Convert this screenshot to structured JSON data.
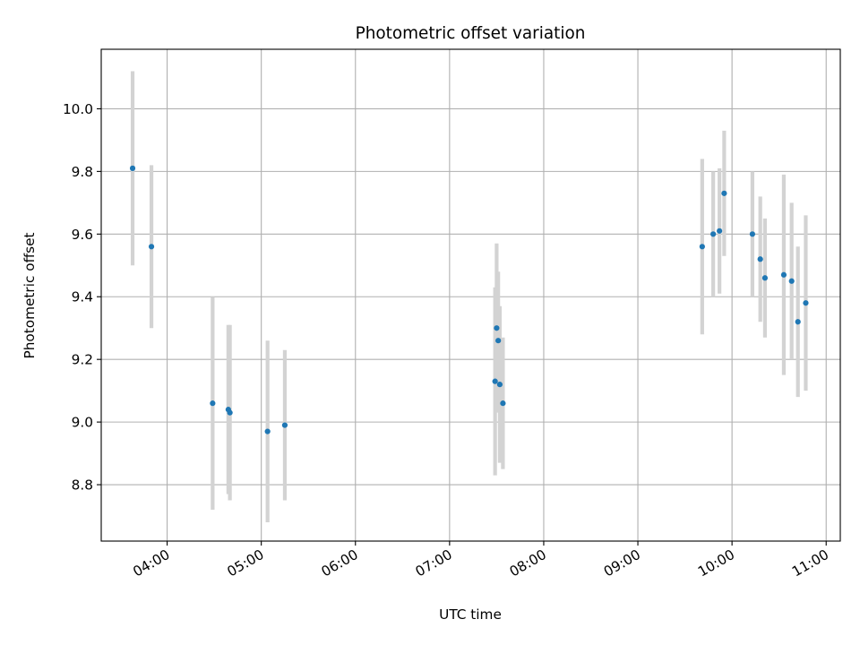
{
  "chart_data": {
    "type": "scatter",
    "title": "Photometric offset variation",
    "xlabel": "UTC time",
    "ylabel": "Photometric offset",
    "x_tick_labels": [
      "04:00",
      "05:00",
      "06:00",
      "07:00",
      "08:00",
      "09:00",
      "10:00",
      "11:00"
    ],
    "x_ticks_hours": [
      4,
      5,
      6,
      7,
      8,
      9,
      10,
      11
    ],
    "xlim_hours": [
      3.3,
      11.15
    ],
    "y_tick_labels": [
      "8.8",
      "9.0",
      "9.2",
      "9.4",
      "9.6",
      "9.8",
      "10.0"
    ],
    "y_ticks": [
      8.8,
      9.0,
      9.2,
      9.4,
      9.6,
      9.8,
      10.0
    ],
    "ylim": [
      8.62,
      10.19
    ],
    "grid": true,
    "point_color": "#1f77b4",
    "errorbar_color": "#d3d3d3",
    "series": [
      {
        "points": [
          {
            "t": "03:38",
            "y": 9.81,
            "err": 0.31
          },
          {
            "t": "03:50",
            "y": 9.56,
            "err": 0.26
          },
          {
            "t": "04:29",
            "y": 9.06,
            "err": 0.34
          },
          {
            "t": "04:39",
            "y": 9.04,
            "err": 0.27
          },
          {
            "t": "04:40",
            "y": 9.03,
            "err": 0.28
          },
          {
            "t": "05:04",
            "y": 8.97,
            "err": 0.29
          },
          {
            "t": "05:15",
            "y": 8.99,
            "err": 0.24
          },
          {
            "t": "07:29",
            "y": 9.13,
            "err": 0.3
          },
          {
            "t": "07:30",
            "y": 9.3,
            "err": 0.27
          },
          {
            "t": "07:31",
            "y": 9.26,
            "err": 0.22
          },
          {
            "t": "07:32",
            "y": 9.12,
            "err": 0.25
          },
          {
            "t": "07:34",
            "y": 9.06,
            "err": 0.21
          },
          {
            "t": "09:41",
            "y": 9.56,
            "err": 0.28
          },
          {
            "t": "09:48",
            "y": 9.6,
            "err": 0.2
          },
          {
            "t": "09:52",
            "y": 9.61,
            "err": 0.2
          },
          {
            "t": "09:55",
            "y": 9.73,
            "err": 0.2
          },
          {
            "t": "10:13",
            "y": 9.6,
            "err": 0.2
          },
          {
            "t": "10:18",
            "y": 9.52,
            "err": 0.2
          },
          {
            "t": "10:21",
            "y": 9.46,
            "err": 0.19
          },
          {
            "t": "10:33",
            "y": 9.47,
            "err": 0.32
          },
          {
            "t": "10:38",
            "y": 9.45,
            "err": 0.25
          },
          {
            "t": "10:42",
            "y": 9.32,
            "err": 0.24
          },
          {
            "t": "10:47",
            "y": 9.38,
            "err": 0.28
          }
        ]
      }
    ]
  }
}
